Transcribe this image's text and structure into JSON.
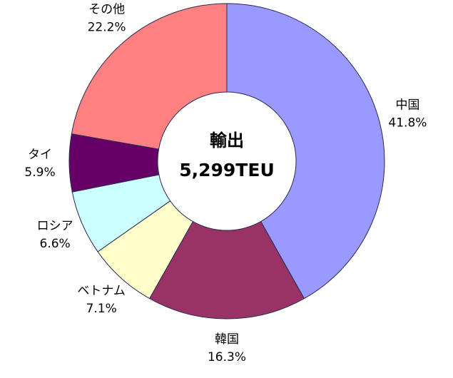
{
  "chart_data": {
    "type": "donut",
    "annotations": [
      "輸出",
      "5,299TEU"
    ],
    "categories": [
      "中国",
      "韓国",
      "ベトナム",
      "ロシア",
      "タイ",
      "その他"
    ],
    "values": [
      41.8,
      16.3,
      7.1,
      6.6,
      5.9,
      22.2
    ],
    "value_labels": [
      "41.8%",
      "16.3%",
      "7.1%",
      "6.6%",
      "5.9%",
      "22.2%"
    ],
    "colors": [
      "#9999ff",
      "#993366",
      "#ffffcc",
      "#ccffff",
      "#660066",
      "#ff8080"
    ]
  }
}
